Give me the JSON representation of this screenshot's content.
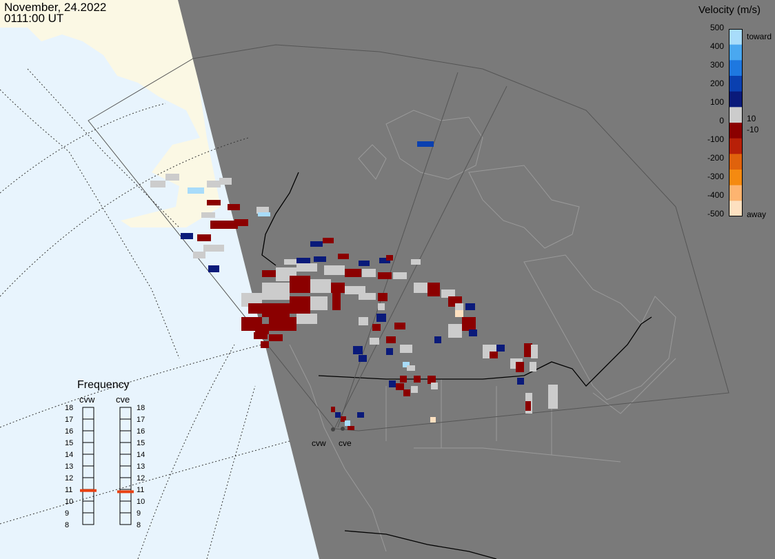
{
  "header": {
    "date": "November, 24.2022",
    "time": "0111:00 UT"
  },
  "colorbar": {
    "title": "Velocity (m/s)",
    "ticks": [
      "500",
      "400",
      "300",
      "200",
      "100",
      "0",
      "-100",
      "-200",
      "-300",
      "-400",
      "-500"
    ],
    "label_toward": "toward",
    "label_away": "away",
    "label_pos": "10",
    "label_neg": "-10",
    "colors": [
      "#fde0c0",
      "#fdb470",
      "#f58a10",
      "#e0620c",
      "#b82008",
      "#8b0000",
      "#cccccc",
      "#0a1a7a",
      "#0a40b0",
      "#1e78e0",
      "#4aa8f0",
      "#a8dcfa"
    ]
  },
  "frequency": {
    "title": "Frequency",
    "radars": [
      {
        "name": "cvw",
        "value": 10.9
      },
      {
        "name": "cve",
        "value": 10.8
      }
    ],
    "scale": [
      "18",
      "17",
      "16",
      "15",
      "14",
      "13",
      "12",
      "11",
      "10",
      "9",
      "8"
    ],
    "marker_color": "#e84010"
  },
  "sites": [
    {
      "name": "cvw"
    },
    {
      "name": "cve"
    }
  ],
  "colors": {
    "ocean": "#e8f4fd",
    "land_night": "#7a7a7a",
    "land_day": "#fbf8e4",
    "borders": "#000000",
    "fov": "#444444"
  }
}
